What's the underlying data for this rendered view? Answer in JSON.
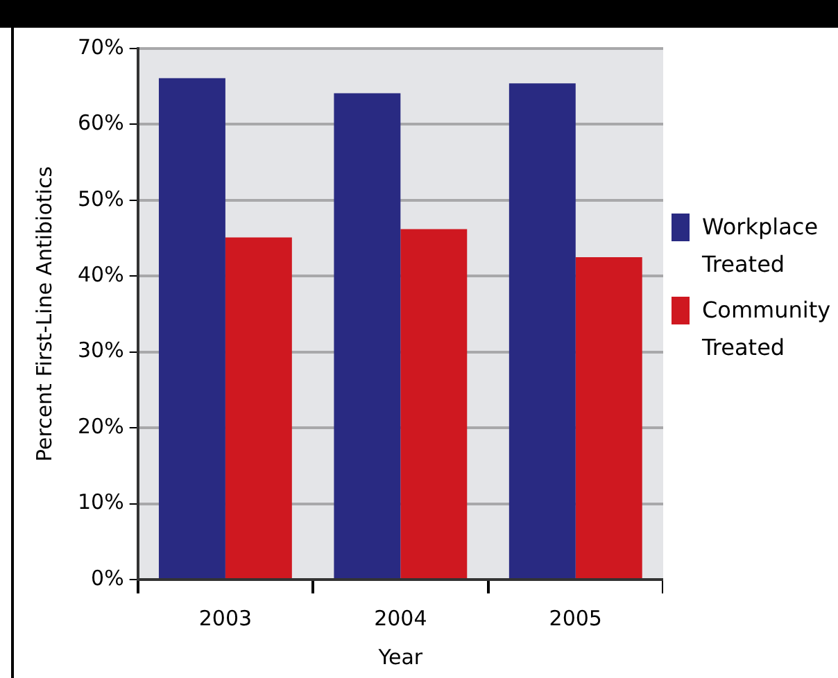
{
  "chart_data": {
    "type": "bar",
    "xlabel": "Year",
    "ylabel": "Percent First-Line Antibiotics",
    "categories": [
      "2003",
      "2004",
      "2005"
    ],
    "series": [
      {
        "name": "Workplace Treated",
        "color": "#292a82",
        "values": [
          66.1,
          64.1,
          65.4
        ]
      },
      {
        "name": "Community Treated",
        "color": "#cf1820",
        "values": [
          45.1,
          46.2,
          42.5
        ]
      }
    ],
    "ylim": [
      0,
      70
    ],
    "yticks": [
      {
        "value": 0,
        "label": "0%"
      },
      {
        "value": 10,
        "label": "10%"
      },
      {
        "value": 20,
        "label": "20%"
      },
      {
        "value": 30,
        "label": "30%"
      },
      {
        "value": 40,
        "label": "40%"
      },
      {
        "value": 50,
        "label": "50%"
      },
      {
        "value": 60,
        "label": "60%"
      },
      {
        "value": 70,
        "label": "70%"
      }
    ],
    "grid": "y",
    "legend": "right"
  }
}
